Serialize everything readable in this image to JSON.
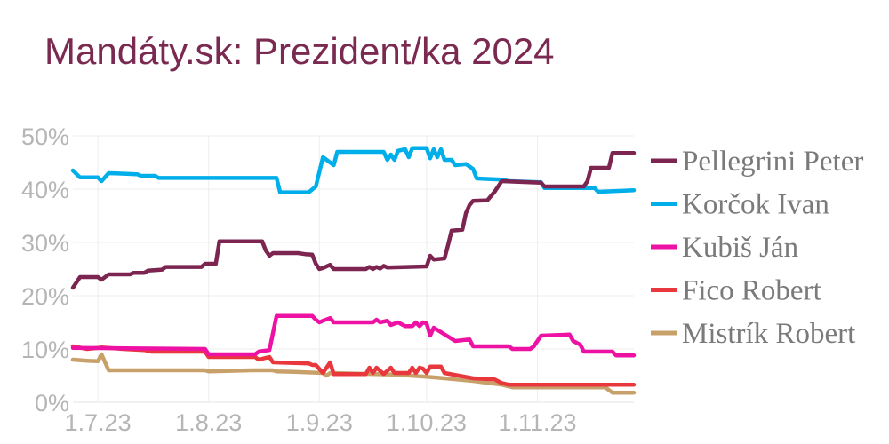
{
  "chart_data": {
    "type": "line",
    "title": "Mandáty.sk: Prezident/ka 2024",
    "xlabel": "",
    "ylabel": "",
    "x_tick_labels": [
      "1.7.23",
      "1.8.23",
      "1.9.23",
      "1.10.23",
      "1.11.23"
    ],
    "y_tick_labels": [
      "0%",
      "10%",
      "20%",
      "30%",
      "40%",
      "50%"
    ],
    "ylim": [
      0,
      50
    ],
    "x_range": [
      "2023-06-24",
      "2023-11-28"
    ],
    "grid": true,
    "legend": "right",
    "series": [
      {
        "name": "Pellegrini Peter",
        "color": "#7b2550",
        "points": [
          [
            "2023-06-24",
            21.5
          ],
          [
            "2023-06-25",
            22.5
          ],
          [
            "2023-06-26",
            23.5
          ],
          [
            "2023-07-01",
            23.5
          ],
          [
            "2023-07-02",
            23.0
          ],
          [
            "2023-07-04",
            24.0
          ],
          [
            "2023-07-10",
            24.0
          ],
          [
            "2023-07-11",
            24.3
          ],
          [
            "2023-07-14",
            24.3
          ],
          [
            "2023-07-15",
            24.7
          ],
          [
            "2023-07-19",
            24.9
          ],
          [
            "2023-07-20",
            25.4
          ],
          [
            "2023-07-30",
            25.4
          ],
          [
            "2023-07-31",
            26.0
          ],
          [
            "2023-08-03",
            26.0
          ],
          [
            "2023-08-04",
            30.2
          ],
          [
            "2023-08-16",
            30.2
          ],
          [
            "2023-08-17",
            28.5
          ],
          [
            "2023-08-18",
            27.5
          ],
          [
            "2023-08-19",
            28.0
          ],
          [
            "2023-08-26",
            28.0
          ],
          [
            "2023-08-28",
            27.8
          ],
          [
            "2023-08-30",
            27.7
          ],
          [
            "2023-08-31",
            26.0
          ],
          [
            "2023-09-01",
            25.0
          ],
          [
            "2023-09-02",
            25.2
          ],
          [
            "2023-09-04",
            25.8
          ],
          [
            "2023-09-05",
            25.0
          ],
          [
            "2023-09-14",
            25.0
          ],
          [
            "2023-09-15",
            25.4
          ],
          [
            "2023-09-16",
            25.0
          ],
          [
            "2023-09-17",
            25.4
          ],
          [
            "2023-09-18",
            25.1
          ],
          [
            "2023-09-19",
            25.6
          ],
          [
            "2023-09-20",
            25.3
          ],
          [
            "2023-10-01",
            25.5
          ],
          [
            "2023-10-02",
            27.5
          ],
          [
            "2023-10-03",
            26.8
          ],
          [
            "2023-10-06",
            27.0
          ],
          [
            "2023-10-07",
            29.5
          ],
          [
            "2023-10-08",
            32.2
          ],
          [
            "2023-10-11",
            32.4
          ],
          [
            "2023-10-12",
            35.5
          ],
          [
            "2023-10-13",
            37.0
          ],
          [
            "2023-10-14",
            37.8
          ],
          [
            "2023-10-18",
            37.9
          ],
          [
            "2023-10-20",
            39.5
          ],
          [
            "2023-10-22",
            41.5
          ],
          [
            "2023-11-02",
            41.2
          ],
          [
            "2023-11-03",
            40.5
          ],
          [
            "2023-11-14",
            40.5
          ],
          [
            "2023-11-15",
            41.5
          ],
          [
            "2023-11-16",
            44.0
          ],
          [
            "2023-11-21",
            44.0
          ],
          [
            "2023-11-22",
            46.8
          ],
          [
            "2023-11-28",
            46.8
          ]
        ]
      },
      {
        "name": "Korčok Ivan",
        "color": "#00aeea",
        "points": [
          [
            "2023-06-24",
            43.5
          ],
          [
            "2023-06-26",
            42.2
          ],
          [
            "2023-07-01",
            42.2
          ],
          [
            "2023-07-02",
            41.5
          ],
          [
            "2023-07-04",
            43.0
          ],
          [
            "2023-07-12",
            42.8
          ],
          [
            "2023-07-13",
            42.5
          ],
          [
            "2023-07-17",
            42.5
          ],
          [
            "2023-07-18",
            42.1
          ],
          [
            "2023-08-20",
            42.1
          ],
          [
            "2023-08-21",
            39.4
          ],
          [
            "2023-08-29",
            39.4
          ],
          [
            "2023-08-31",
            40.5
          ],
          [
            "2023-09-02",
            46.0
          ],
          [
            "2023-09-03",
            45.5
          ],
          [
            "2023-09-05",
            44.5
          ],
          [
            "2023-09-06",
            47.0
          ],
          [
            "2023-09-19",
            47.0
          ],
          [
            "2023-09-20",
            45.5
          ],
          [
            "2023-09-21",
            46.5
          ],
          [
            "2023-09-22",
            45.5
          ],
          [
            "2023-09-23",
            47.2
          ],
          [
            "2023-09-25",
            47.5
          ],
          [
            "2023-09-26",
            46.0
          ],
          [
            "2023-09-27",
            47.7
          ],
          [
            "2023-10-01",
            47.7
          ],
          [
            "2023-10-02",
            45.8
          ],
          [
            "2023-10-03",
            47.5
          ],
          [
            "2023-10-04",
            46.0
          ],
          [
            "2023-10-05",
            47.5
          ],
          [
            "2023-10-06",
            45.5
          ],
          [
            "2023-10-08",
            45.5
          ],
          [
            "2023-10-09",
            44.5
          ],
          [
            "2023-10-12",
            44.7
          ],
          [
            "2023-10-14",
            43.8
          ],
          [
            "2023-10-15",
            42.0
          ],
          [
            "2023-10-22",
            41.8
          ],
          [
            "2023-10-24",
            41.5
          ],
          [
            "2023-11-02",
            41.3
          ],
          [
            "2023-11-03",
            40.2
          ],
          [
            "2023-11-17",
            40.2
          ],
          [
            "2023-11-18",
            39.5
          ],
          [
            "2023-11-28",
            39.8
          ]
        ]
      },
      {
        "name": "Kubiš Ján",
        "color": "#ee12a4",
        "points": [
          [
            "2023-06-24",
            10.2
          ],
          [
            "2023-07-31",
            10.0
          ],
          [
            "2023-08-01",
            9.0
          ],
          [
            "2023-08-14",
            9.0
          ],
          [
            "2023-08-15",
            9.5
          ],
          [
            "2023-08-18",
            9.8
          ],
          [
            "2023-08-20",
            16.2
          ],
          [
            "2023-08-30",
            16.2
          ],
          [
            "2023-08-31",
            15.5
          ],
          [
            "2023-09-01",
            15.0
          ],
          [
            "2023-09-02",
            15.3
          ],
          [
            "2023-09-04",
            15.8
          ],
          [
            "2023-09-05",
            15.0
          ],
          [
            "2023-09-16",
            15.0
          ],
          [
            "2023-09-17",
            15.5
          ],
          [
            "2023-09-18",
            15.0
          ],
          [
            "2023-09-20",
            15.3
          ],
          [
            "2023-09-21",
            14.5
          ],
          [
            "2023-09-23",
            15.0
          ],
          [
            "2023-09-25",
            14.3
          ],
          [
            "2023-09-27",
            14.3
          ],
          [
            "2023-09-28",
            15.0
          ],
          [
            "2023-09-29",
            14.3
          ],
          [
            "2023-09-30",
            15.0
          ],
          [
            "2023-10-01",
            14.8
          ],
          [
            "2023-10-02",
            12.5
          ],
          [
            "2023-10-03",
            14.0
          ],
          [
            "2023-10-09",
            11.5
          ],
          [
            "2023-10-13",
            11.8
          ],
          [
            "2023-10-14",
            10.5
          ],
          [
            "2023-10-24",
            10.5
          ],
          [
            "2023-10-25",
            10.0
          ],
          [
            "2023-10-30",
            10.0
          ],
          [
            "2023-10-31",
            10.5
          ],
          [
            "2023-11-01",
            11.5
          ],
          [
            "2023-11-02",
            12.5
          ],
          [
            "2023-11-10",
            12.7
          ],
          [
            "2023-11-11",
            11.5
          ],
          [
            "2023-11-13",
            10.8
          ],
          [
            "2023-11-14",
            9.5
          ],
          [
            "2023-11-22",
            9.5
          ],
          [
            "2023-11-23",
            8.8
          ],
          [
            "2023-11-28",
            8.8
          ]
        ]
      },
      {
        "name": "Fico Robert",
        "color": "#e8383d",
        "points": [
          [
            "2023-06-24",
            10.5
          ],
          [
            "2023-06-28",
            10.0
          ],
          [
            "2023-07-01",
            10.2
          ],
          [
            "2023-07-02",
            10.3
          ],
          [
            "2023-07-08",
            10.0
          ],
          [
            "2023-07-14",
            9.8
          ],
          [
            "2023-07-16",
            9.5
          ],
          [
            "2023-07-31",
            9.5
          ],
          [
            "2023-08-01",
            8.5
          ],
          [
            "2023-08-14",
            8.5
          ],
          [
            "2023-08-15",
            8.0
          ],
          [
            "2023-08-18",
            8.5
          ],
          [
            "2023-08-19",
            7.5
          ],
          [
            "2023-08-29",
            7.3
          ],
          [
            "2023-08-30",
            7.0
          ],
          [
            "2023-08-31",
            7.0
          ],
          [
            "2023-09-02",
            5.5
          ],
          [
            "2023-09-04",
            7.5
          ],
          [
            "2023-09-05",
            5.3
          ],
          [
            "2023-09-14",
            5.3
          ],
          [
            "2023-09-15",
            6.5
          ],
          [
            "2023-09-16",
            5.5
          ],
          [
            "2023-09-17",
            6.5
          ],
          [
            "2023-09-19",
            5.3
          ],
          [
            "2023-09-21",
            6.5
          ],
          [
            "2023-09-22",
            5.5
          ],
          [
            "2023-09-26",
            5.5
          ],
          [
            "2023-09-27",
            6.5
          ],
          [
            "2023-09-28",
            5.5
          ],
          [
            "2023-09-29",
            6.5
          ],
          [
            "2023-09-30",
            6.3
          ],
          [
            "2023-10-01",
            5.5
          ],
          [
            "2023-10-02",
            6.7
          ],
          [
            "2023-10-05",
            6.7
          ],
          [
            "2023-10-06",
            5.5
          ],
          [
            "2023-10-10",
            5.0
          ],
          [
            "2023-10-14",
            4.5
          ],
          [
            "2023-10-20",
            4.3
          ],
          [
            "2023-10-22",
            3.6
          ],
          [
            "2023-10-24",
            3.3
          ],
          [
            "2023-11-28",
            3.3
          ]
        ]
      },
      {
        "name": "Mistrík Robert",
        "color": "#c8a06a",
        "points": [
          [
            "2023-06-24",
            8.0
          ],
          [
            "2023-06-28",
            7.8
          ],
          [
            "2023-07-01",
            7.7
          ],
          [
            "2023-07-02",
            9.0
          ],
          [
            "2023-07-04",
            6.0
          ],
          [
            "2023-07-31",
            6.0
          ],
          [
            "2023-08-01",
            5.8
          ],
          [
            "2023-08-13",
            6.0
          ],
          [
            "2023-08-19",
            6.0
          ],
          [
            "2023-08-20",
            5.8
          ],
          [
            "2023-08-25",
            5.7
          ],
          [
            "2023-09-02",
            5.5
          ],
          [
            "2023-09-03",
            5.0
          ],
          [
            "2023-09-04",
            5.5
          ],
          [
            "2023-09-22",
            5.2
          ],
          [
            "2023-10-01",
            4.8
          ],
          [
            "2023-10-06",
            4.5
          ],
          [
            "2023-10-14",
            4.0
          ],
          [
            "2023-10-22",
            3.3
          ],
          [
            "2023-10-25",
            2.8
          ],
          [
            "2023-11-20",
            2.8
          ],
          [
            "2023-11-22",
            1.8
          ],
          [
            "2023-11-28",
            1.8
          ]
        ]
      }
    ]
  }
}
